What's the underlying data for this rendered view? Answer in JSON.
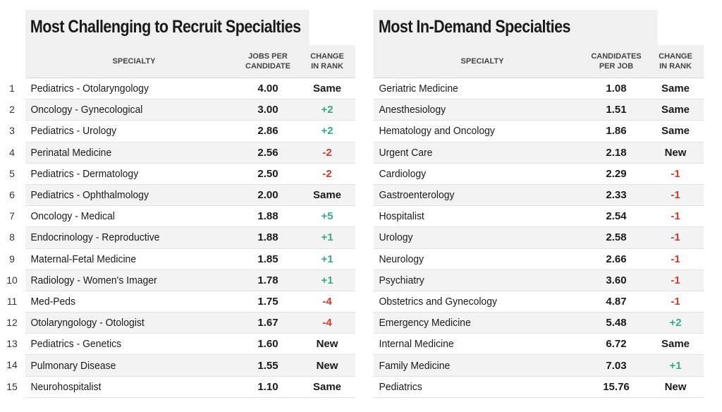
{
  "chart_data": [
    {
      "type": "table",
      "title": "Most Challenging to Recruit Specialties",
      "columns": [
        "SPECIALTY",
        "JOBS PER\nCANDIDATE",
        "CHANGE\nIN RANK"
      ],
      "rows": [
        {
          "rank": "1",
          "specialty": "Pediatrics - Otolaryngology",
          "value": "4.00",
          "change": "Same"
        },
        {
          "rank": "2",
          "specialty": "Oncology - Gynecological",
          "value": "3.00",
          "change": "+2"
        },
        {
          "rank": "3",
          "specialty": "Pediatrics - Urology",
          "value": "2.86",
          "change": "+2"
        },
        {
          "rank": "4",
          "specialty": "Perinatal Medicine",
          "value": "2.56",
          "change": "-2"
        },
        {
          "rank": "5",
          "specialty": "Pediatrics - Dermatology",
          "value": "2.50",
          "change": "-2"
        },
        {
          "rank": "6",
          "specialty": "Pediatrics - Ophthalmology",
          "value": "2.00",
          "change": "Same"
        },
        {
          "rank": "7",
          "specialty": "Oncology - Medical",
          "value": "1.88",
          "change": "+5"
        },
        {
          "rank": "8",
          "specialty": "Endocrinology - Reproductive",
          "value": "1.88",
          "change": "+1"
        },
        {
          "rank": "9",
          "specialty": "Maternal-Fetal Medicine",
          "value": "1.85",
          "change": "+1"
        },
        {
          "rank": "10",
          "specialty": "Radiology - Women's Imager",
          "value": "1.78",
          "change": "+1"
        },
        {
          "rank": "11",
          "specialty": "Med-Peds",
          "value": "1.75",
          "change": "-4"
        },
        {
          "rank": "12",
          "specialty": "Otolaryngology - Otologist",
          "value": "1.67",
          "change": "-4"
        },
        {
          "rank": "13",
          "specialty": "Pediatrics - Genetics",
          "value": "1.60",
          "change": "New"
        },
        {
          "rank": "14",
          "specialty": "Pulmonary Disease",
          "value": "1.55",
          "change": "New"
        },
        {
          "rank": "15",
          "specialty": "Neurohospitalist",
          "value": "1.10",
          "change": "Same"
        }
      ]
    },
    {
      "type": "table",
      "title": "Most In-Demand Specialties",
      "columns": [
        "SPECIALTY",
        "CANDIDATES\nPER JOB",
        "CHANGE\nIN RANK"
      ],
      "rows": [
        {
          "specialty": "Geriatric Medicine",
          "value": "1.08",
          "change": "Same"
        },
        {
          "specialty": "Anesthesiology",
          "value": "1.51",
          "change": "Same"
        },
        {
          "specialty": "Hematology and Oncology",
          "value": "1.86",
          "change": "Same"
        },
        {
          "specialty": "Urgent Care",
          "value": "2.18",
          "change": "New"
        },
        {
          "specialty": "Cardiology",
          "value": "2.29",
          "change": "-1"
        },
        {
          "specialty": "Gastroenterology",
          "value": "2.33",
          "change": "-1"
        },
        {
          "specialty": "Hospitalist",
          "value": "2.54",
          "change": "-1"
        },
        {
          "specialty": "Urology",
          "value": "2.58",
          "change": "-1"
        },
        {
          "specialty": "Neurology",
          "value": "2.66",
          "change": "-1"
        },
        {
          "specialty": "Psychiatry",
          "value": "3.60",
          "change": "-1"
        },
        {
          "specialty": "Obstetrics and Gynecology",
          "value": "4.87",
          "change": "-1"
        },
        {
          "specialty": "Emergency Medicine",
          "value": "5.48",
          "change": "+2"
        },
        {
          "specialty": "Internal Medicine",
          "value": "6.72",
          "change": "Same"
        },
        {
          "specialty": "Family Medicine",
          "value": "7.03",
          "change": "+1"
        },
        {
          "specialty": "Pediatrics",
          "value": "15.76",
          "change": "New"
        }
      ]
    }
  ],
  "colors": {
    "increase": "#3aaa8a",
    "decrease": "#d23a2b",
    "header_bg": "#f0f0f0",
    "stripe_bg": "#f3f3f3"
  }
}
